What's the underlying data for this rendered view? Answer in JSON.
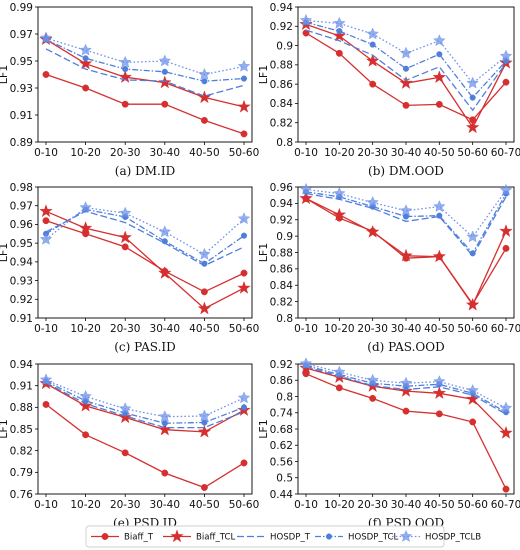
{
  "ylabel": "LF1",
  "legend": [
    {
      "name": "Biaff_T",
      "color": "#d62f2f",
      "dash": "solid",
      "marker": "circle"
    },
    {
      "name": "Biaff_TCL",
      "color": "#d62f2f",
      "dash": "solid",
      "marker": "star"
    },
    {
      "name": "HOSDP_T",
      "color": "#4f7fdb",
      "dash": "longdash",
      "marker": "none"
    },
    {
      "name": "HOSDP_TCL",
      "color": "#4f7fdb",
      "dash": "dashdot",
      "marker": "circle"
    },
    {
      "name": "HOSDP_TCLB",
      "color": "#6f93ea",
      "dash": "dotted",
      "marker": "star"
    }
  ],
  "chart_data": [
    {
      "type": "line",
      "caption": "(a)  DM.ID",
      "categories": [
        "0-10",
        "10-20",
        "20-30",
        "30-40",
        "40-50",
        "50-60"
      ],
      "ylim": [
        0.89,
        0.99
      ],
      "yticks": [
        "0.89",
        "0.91",
        "0.93",
        "0.95",
        "0.97",
        "0.99"
      ],
      "series": [
        {
          "name": "Biaff_T",
          "values": [
            0.94,
            0.93,
            0.918,
            0.918,
            0.906,
            0.896
          ]
        },
        {
          "name": "Biaff_TCL",
          "values": [
            0.966,
            0.948,
            0.938,
            0.934,
            0.923,
            0.916
          ]
        },
        {
          "name": "HOSDP_T",
          "values": [
            0.959,
            0.944,
            0.936,
            0.935,
            0.924,
            0.932
          ]
        },
        {
          "name": "HOSDP_TCL",
          "values": [
            0.966,
            0.952,
            0.944,
            0.942,
            0.935,
            0.937
          ]
        },
        {
          "name": "HOSDP_TCLB",
          "values": [
            0.967,
            0.958,
            0.949,
            0.95,
            0.94,
            0.946
          ]
        }
      ]
    },
    {
      "type": "line",
      "caption": "(b)  DM.OOD",
      "categories": [
        "0-10",
        "10-20",
        "20-30",
        "30-40",
        "40-50",
        "50-60",
        "60-70"
      ],
      "ylim": [
        0.8,
        0.94
      ],
      "yticks": [
        "0.8",
        "0.82",
        "0.84",
        "0.86",
        "0.88",
        "0.9",
        "0.92",
        "0.94"
      ],
      "series": [
        {
          "name": "Biaff_T",
          "values": [
            0.913,
            0.892,
            0.86,
            0.838,
            0.839,
            0.823,
            0.862
          ]
        },
        {
          "name": "Biaff_TCL",
          "values": [
            0.922,
            0.91,
            0.884,
            0.861,
            0.867,
            0.815,
            0.882
          ]
        },
        {
          "name": "HOSDP_T",
          "values": [
            0.916,
            0.905,
            0.89,
            0.864,
            0.878,
            0.833,
            0.882
          ]
        },
        {
          "name": "HOSDP_TCL",
          "values": [
            0.924,
            0.915,
            0.901,
            0.876,
            0.891,
            0.846,
            0.884
          ]
        },
        {
          "name": "HOSDP_TCLB",
          "values": [
            0.926,
            0.923,
            0.912,
            0.892,
            0.905,
            0.861,
            0.889
          ]
        }
      ]
    },
    {
      "type": "line",
      "caption": "(c)  PAS.ID",
      "categories": [
        "0-10",
        "10-20",
        "20-30",
        "30-40",
        "40-50",
        "50-60"
      ],
      "ylim": [
        0.91,
        0.98
      ],
      "yticks": [
        "0.91",
        "0.92",
        "0.93",
        "0.94",
        "0.95",
        "0.96",
        "0.97",
        "0.98"
      ],
      "series": [
        {
          "name": "Biaff_T",
          "values": [
            0.962,
            0.955,
            0.948,
            0.935,
            0.924,
            0.934
          ]
        },
        {
          "name": "Biaff_TCL",
          "values": [
            0.967,
            0.958,
            0.953,
            0.934,
            0.915,
            0.926
          ]
        },
        {
          "name": "HOSDP_T",
          "values": [
            0.956,
            0.967,
            0.961,
            0.95,
            0.938,
            0.948
          ]
        },
        {
          "name": "HOSDP_TCL",
          "values": [
            0.955,
            0.968,
            0.964,
            0.951,
            0.939,
            0.954
          ]
        },
        {
          "name": "HOSDP_TCLB",
          "values": [
            0.952,
            0.969,
            0.966,
            0.956,
            0.944,
            0.963
          ]
        }
      ]
    },
    {
      "type": "line",
      "caption": "(d)  PAS.OOD",
      "categories": [
        "0-10",
        "10-20",
        "20-30",
        "30-40",
        "40-50",
        "50-60",
        "60-70"
      ],
      "ylim": [
        0.8,
        0.96
      ],
      "yticks": [
        "0.8",
        "0.82",
        "0.84",
        "0.86",
        "0.88",
        "0.9",
        "0.92",
        "0.94",
        "0.96"
      ],
      "series": [
        {
          "name": "Biaff_T",
          "values": [
            0.946,
            0.922,
            0.906,
            0.873,
            0.875,
            0.817,
            0.885
          ]
        },
        {
          "name": "Biaff_TCL",
          "values": [
            0.946,
            0.926,
            0.905,
            0.876,
            0.875,
            0.816,
            0.906
          ]
        },
        {
          "name": "HOSDP_T",
          "values": [
            0.952,
            0.945,
            0.934,
            0.918,
            0.924,
            0.876,
            0.948
          ]
        },
        {
          "name": "HOSDP_TCL",
          "values": [
            0.954,
            0.948,
            0.936,
            0.924,
            0.925,
            0.879,
            0.952
          ]
        },
        {
          "name": "HOSDP_TCLB",
          "values": [
            0.957,
            0.952,
            0.941,
            0.931,
            0.936,
            0.899,
            0.956
          ]
        }
      ]
    },
    {
      "type": "line",
      "caption": "(e)  PSD.ID",
      "categories": [
        "0-10",
        "10-20",
        "20-30",
        "30-40",
        "40-50",
        "50-60"
      ],
      "ylim": [
        0.76,
        0.94
      ],
      "yticks": [
        "0.76",
        "0.79",
        "0.82",
        "0.85",
        "0.88",
        "0.91",
        "0.94"
      ],
      "series": [
        {
          "name": "Biaff_T",
          "values": [
            0.884,
            0.842,
            0.817,
            0.789,
            0.769,
            0.803
          ]
        },
        {
          "name": "Biaff_TCL",
          "values": [
            0.913,
            0.882,
            0.866,
            0.849,
            0.846,
            0.876
          ]
        },
        {
          "name": "HOSDP_T",
          "values": [
            0.914,
            0.885,
            0.868,
            0.852,
            0.852,
            0.874
          ]
        },
        {
          "name": "HOSDP_TCL",
          "values": [
            0.916,
            0.889,
            0.872,
            0.858,
            0.859,
            0.88
          ]
        },
        {
          "name": "HOSDP_TCLB",
          "values": [
            0.918,
            0.895,
            0.878,
            0.867,
            0.868,
            0.893
          ]
        }
      ]
    },
    {
      "type": "line",
      "caption": "(f)  PSD.OOD",
      "categories": [
        "0-10",
        "10-20",
        "20-30",
        "30-40",
        "40-50",
        "50-60",
        "60-70"
      ],
      "ylim": [
        0.44,
        0.92
      ],
      "yticks": [
        "0.44",
        "0.5",
        "0.56",
        "0.62",
        "0.68",
        "0.74",
        "0.8",
        "0.86",
        "0.92"
      ],
      "series": [
        {
          "name": "Biaff_T",
          "values": [
            0.884,
            0.832,
            0.793,
            0.746,
            0.736,
            0.706,
            0.458
          ]
        },
        {
          "name": "Biaff_TCL",
          "values": [
            0.905,
            0.871,
            0.838,
            0.82,
            0.812,
            0.79,
            0.665
          ]
        },
        {
          "name": "HOSDP_T",
          "values": [
            0.91,
            0.875,
            0.84,
            0.826,
            0.836,
            0.805,
            0.735
          ]
        },
        {
          "name": "HOSDP_TCL",
          "values": [
            0.915,
            0.88,
            0.849,
            0.838,
            0.845,
            0.812,
            0.742
          ]
        },
        {
          "name": "HOSDP_TCLB",
          "values": [
            0.921,
            0.89,
            0.86,
            0.849,
            0.855,
            0.822,
            0.757
          ]
        }
      ]
    }
  ]
}
